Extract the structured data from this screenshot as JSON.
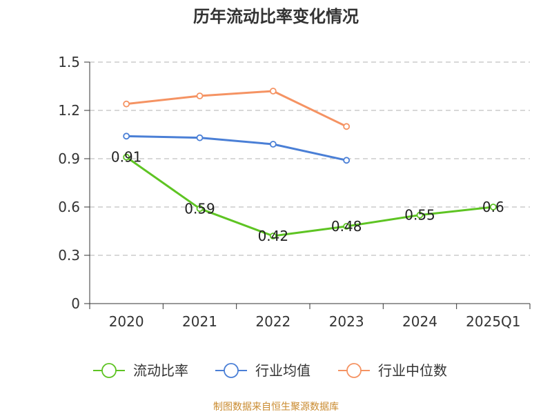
{
  "chart_data": {
    "type": "line",
    "title": "历年流动比率变化情况",
    "categories": [
      "2020",
      "2021",
      "2022",
      "2023",
      "2024",
      "2025Q1"
    ],
    "ylim": [
      0,
      1.5
    ],
    "yticks": [
      "0",
      "0.3",
      "0.6",
      "0.9",
      "1.2",
      "1.5"
    ],
    "ytick_values": [
      0,
      0.3,
      0.6,
      0.9,
      1.2,
      1.5
    ],
    "grid": true,
    "legend_position": "bottom",
    "series": [
      {
        "name": "流动比率",
        "color": "#5ec423",
        "values": [
          0.91,
          0.59,
          0.42,
          0.48,
          0.55,
          0.6
        ],
        "labels": [
          "0.91",
          "0.59",
          "0.42",
          "0.48",
          "0.55",
          "0.6"
        ],
        "show_labels": true
      },
      {
        "name": "行业均值",
        "color": "#4a7fd6",
        "values": [
          1.04,
          1.03,
          0.99,
          0.89,
          null,
          null
        ],
        "show_labels": false
      },
      {
        "name": "行业中位数",
        "color": "#f59363",
        "values": [
          1.24,
          1.29,
          1.32,
          1.1,
          null,
          null
        ],
        "show_labels": false
      }
    ]
  },
  "source": "制图数据来自恒生聚源数据库"
}
